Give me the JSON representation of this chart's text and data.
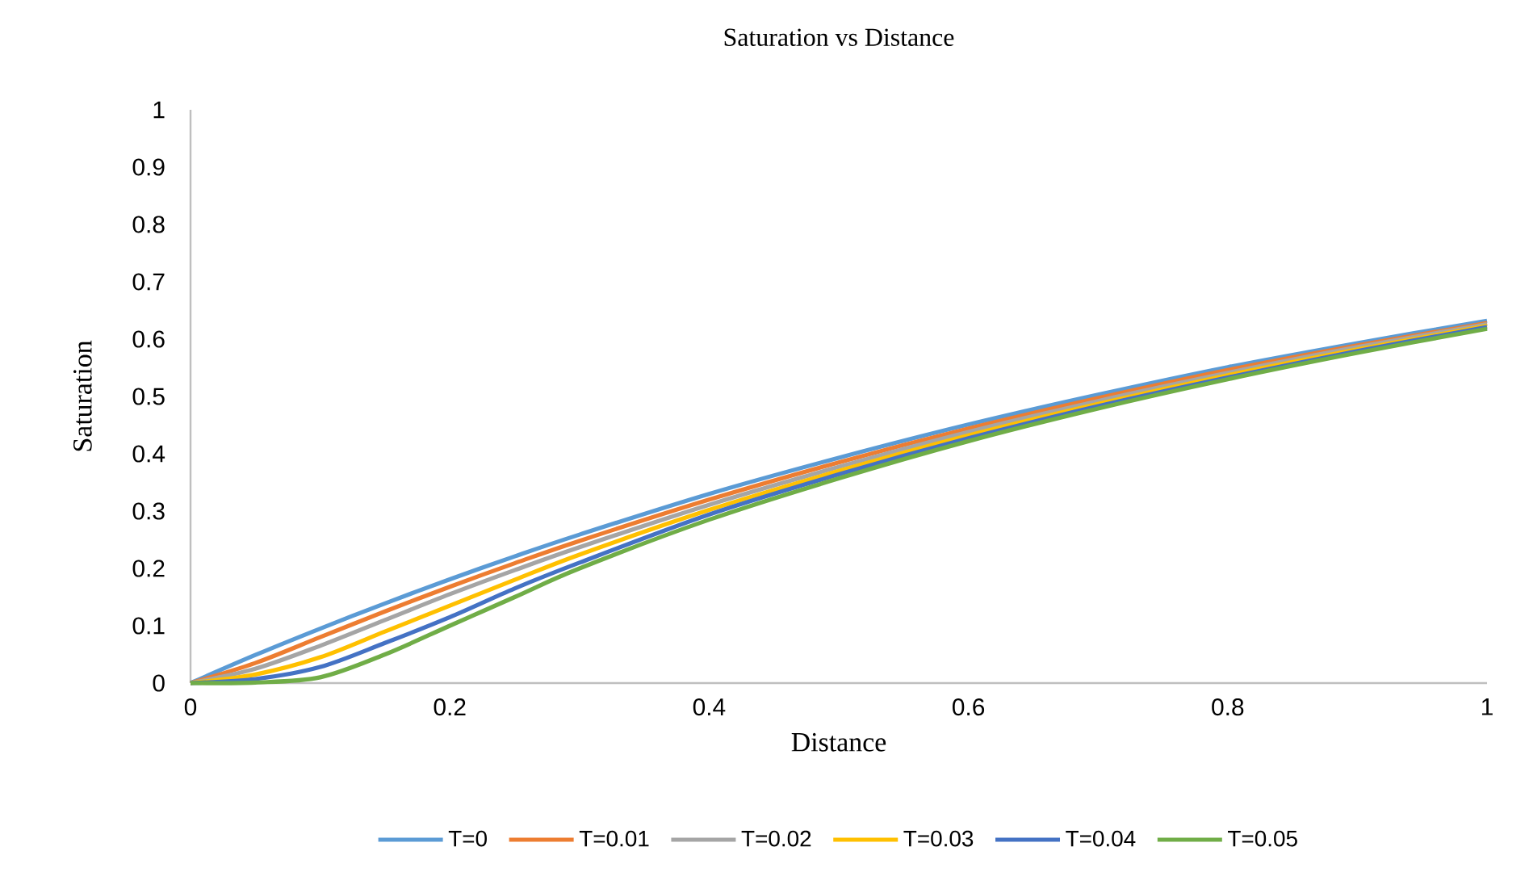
{
  "chart_data": {
    "type": "line",
    "title": "Saturation vs Distance",
    "xlabel": "Distance",
    "ylabel": "Saturation",
    "x": [
      0,
      0.05,
      0.1,
      0.15,
      0.2,
      0.25,
      0.3,
      0.4,
      0.5,
      0.6,
      0.7,
      0.8,
      0.9,
      1
    ],
    "series": [
      {
        "name": "T=0",
        "color": "#5b9bd5",
        "values": [
          0,
          0.049,
          0.095,
          0.139,
          0.181,
          0.221,
          0.259,
          0.33,
          0.393,
          0.451,
          0.503,
          0.551,
          0.593,
          0.632
        ]
      },
      {
        "name": "T=0.01",
        "color": "#ed7d31",
        "values": [
          0,
          0.035,
          0.08,
          0.125,
          0.168,
          0.209,
          0.248,
          0.32,
          0.385,
          0.444,
          0.497,
          0.546,
          0.589,
          0.628
        ]
      },
      {
        "name": "T=0.02",
        "color": "#a5a5a5",
        "values": [
          0,
          0.025,
          0.065,
          0.11,
          0.155,
          0.197,
          0.237,
          0.311,
          0.377,
          0.438,
          0.492,
          0.541,
          0.586,
          0.626
        ]
      },
      {
        "name": "T=0.03",
        "color": "#ffc000",
        "values": [
          0,
          0.015,
          0.045,
          0.09,
          0.135,
          0.18,
          0.224,
          0.302,
          0.37,
          0.432,
          0.487,
          0.537,
          0.582,
          0.623
        ]
      },
      {
        "name": "T=0.04",
        "color": "#4472c4",
        "values": [
          0,
          0.007,
          0.028,
          0.07,
          0.115,
          0.165,
          0.21,
          0.294,
          0.364,
          0.427,
          0.483,
          0.533,
          0.579,
          0.621
        ]
      },
      {
        "name": "T=0.05",
        "color": "#70ad47",
        "values": [
          0,
          0.001,
          0.01,
          0.05,
          0.1,
          0.15,
          0.2,
          0.285,
          0.357,
          0.422,
          0.479,
          0.53,
          0.576,
          0.618
        ]
      }
    ],
    "xlim": [
      0,
      1
    ],
    "ylim": [
      0,
      1
    ],
    "xticks": [
      0,
      0.2,
      0.4,
      0.6,
      0.8,
      1
    ],
    "yticks": [
      0,
      0.1,
      0.2,
      0.3,
      0.4,
      0.5,
      0.6,
      0.7,
      0.8,
      0.9,
      1
    ],
    "grid": false,
    "legend": "bottom",
    "marker": "none",
    "line_style": "solid"
  }
}
